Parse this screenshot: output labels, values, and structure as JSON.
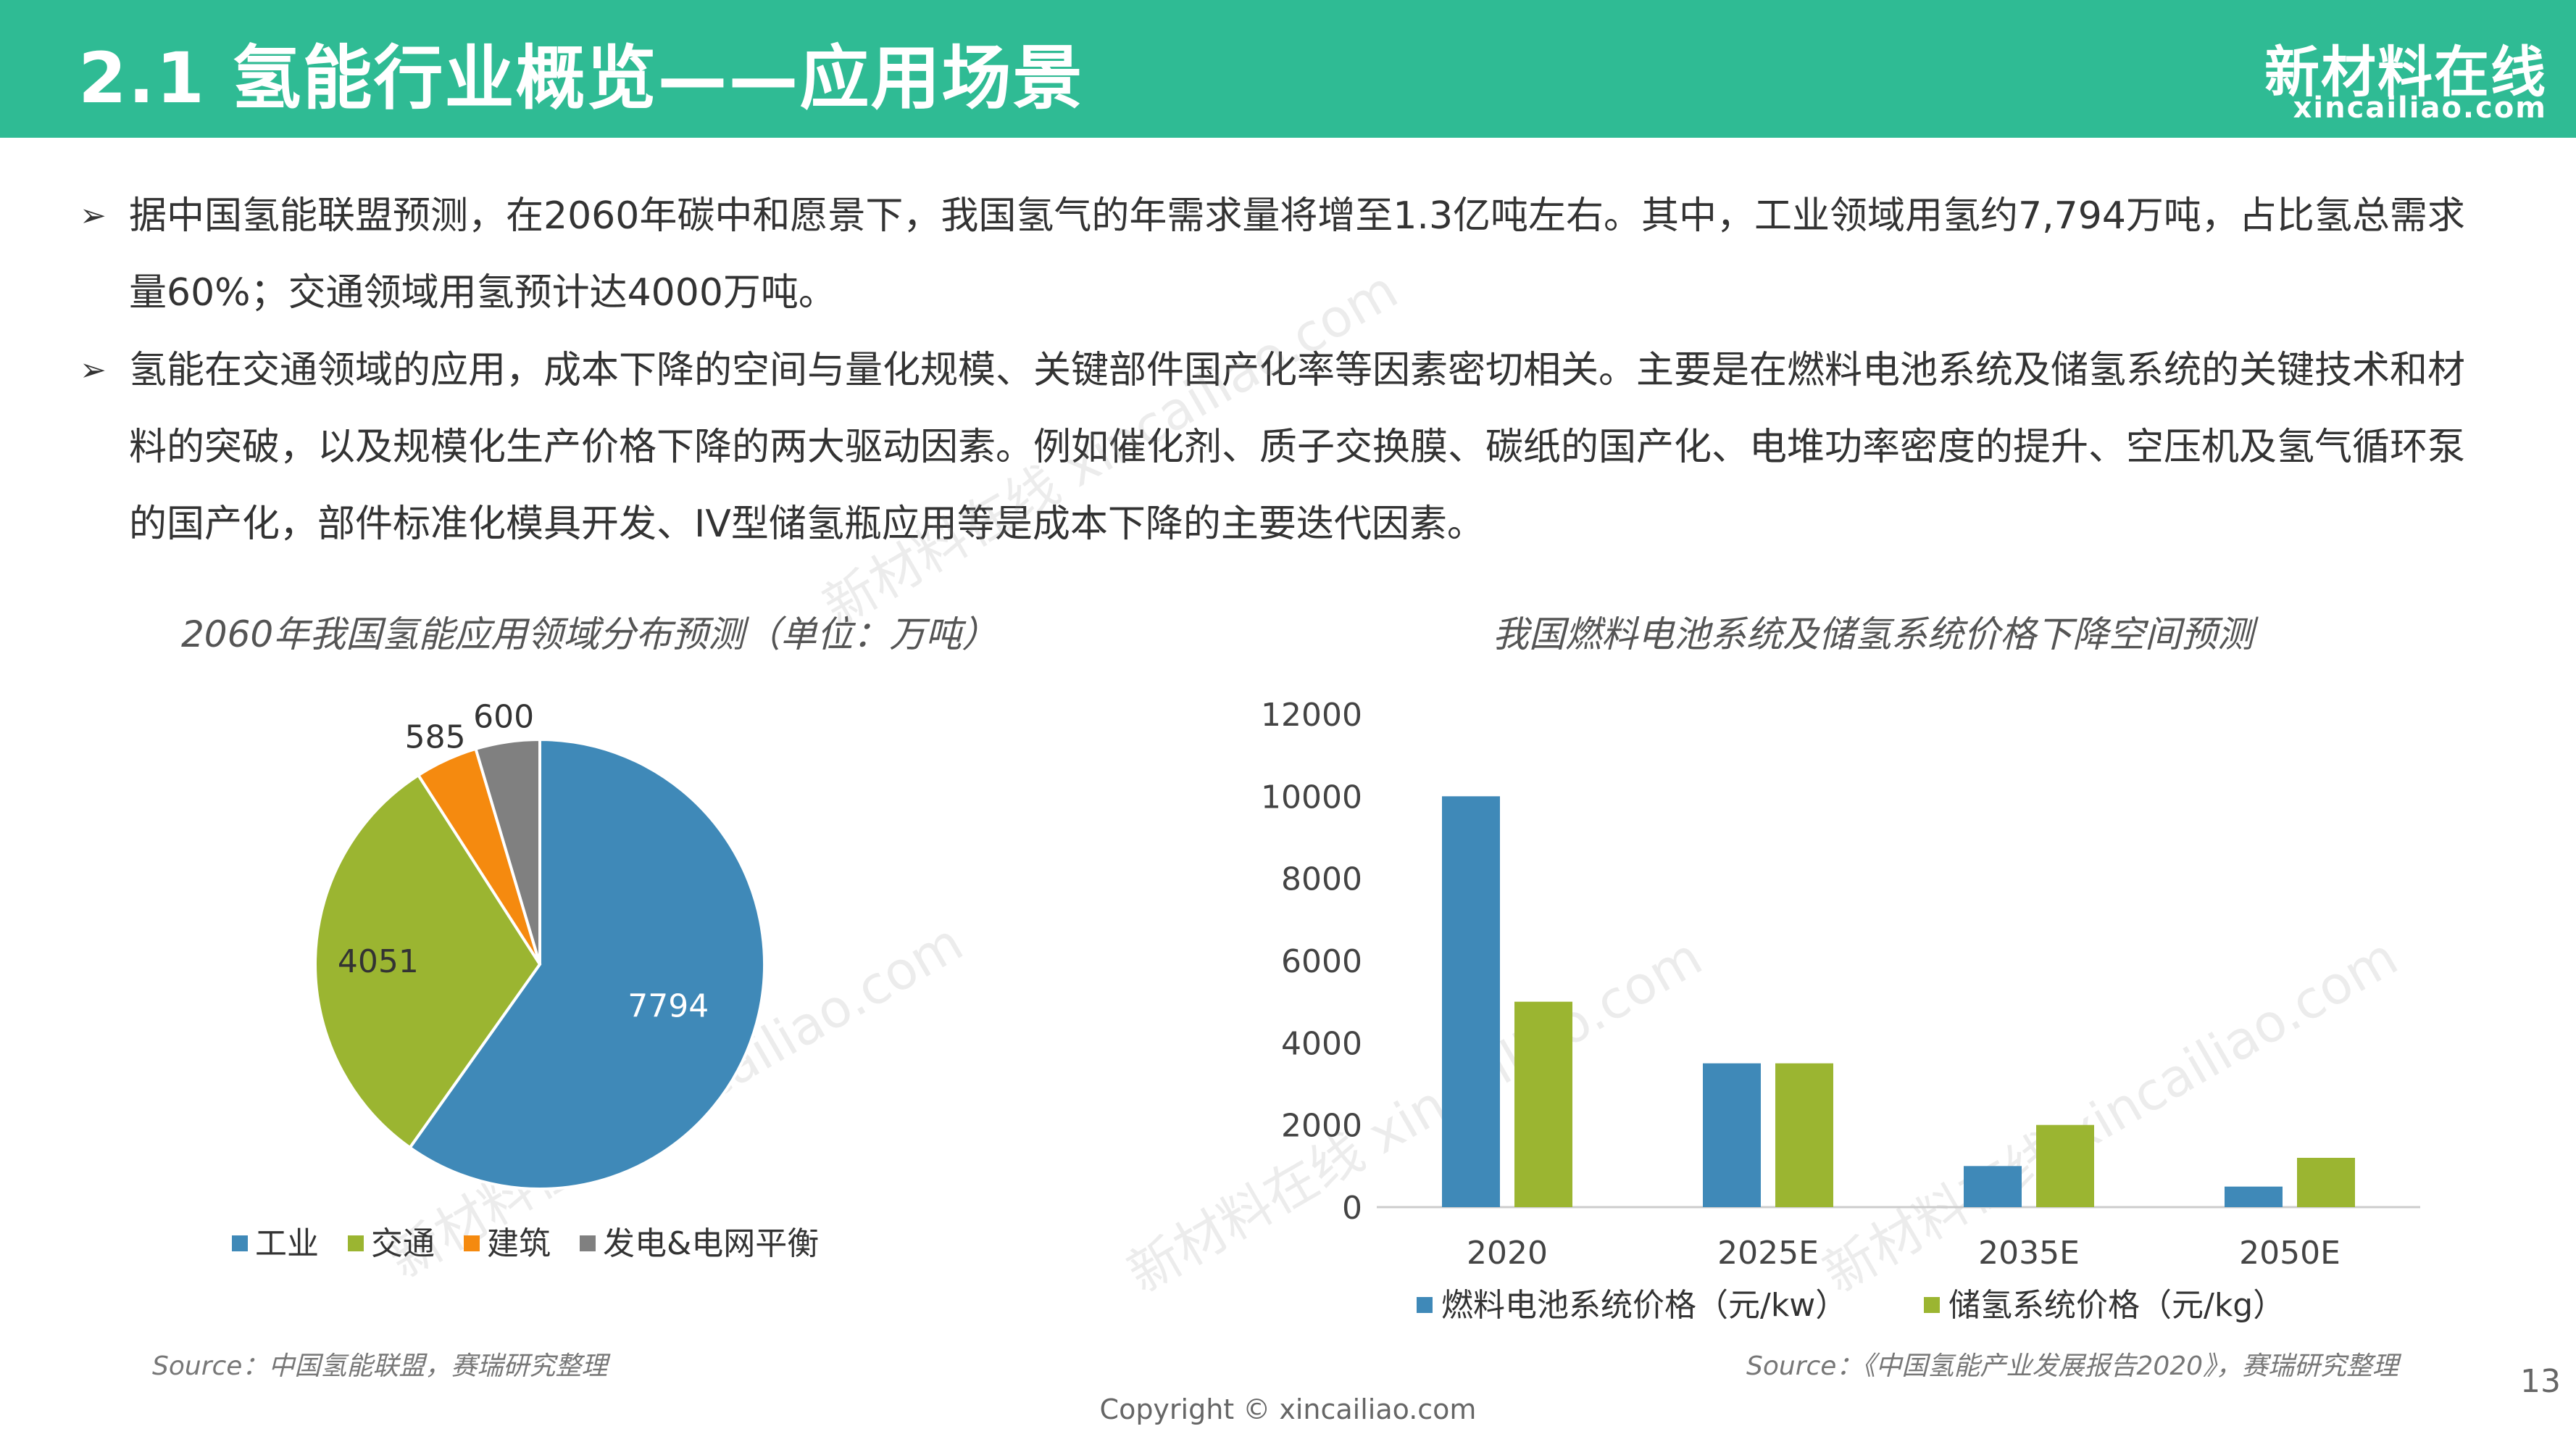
{
  "header": {
    "title": "2.1 氢能行业概览——应用场景",
    "logo_main": "新材料在线",
    "logo_sub": "xincailiao.com"
  },
  "bullets": [
    "据中国氢能联盟预测，在2060年碳中和愿景下，我国氢气的年需求量将增至1.3亿吨左右。其中，工业领域用氢约7,794万吨，占比氢总需求量60%；交通领域用氢预计达4000万吨。",
    "氢能在交通领域的应用，成本下降的空间与量化规模、关键部件国产化率等因素密切相关。主要是在燃料电池系统及储氢系统的关键技术和材料的突破，以及规模化生产价格下降的两大驱动因素。例如催化剂、质子交换膜、碳纸的国产化、电堆功率密度的提升、空压机及氢气循环泵的国产化，部件标准化模具开发、IV型储氢瓶应用等是成本下降的主要迭代因素。"
  ],
  "bullet_marker": "➢",
  "chart_data": [
    {
      "type": "pie",
      "title": "2060年我国氢能应用领域分布预测（单位：万吨）",
      "categories": [
        "工业",
        "交通",
        "建筑",
        "发电&电网平衡"
      ],
      "values": [
        7794,
        4051,
        585,
        600
      ],
      "colors": [
        "#3f89b8",
        "#9bb531",
        "#f58a0f",
        "#808080"
      ],
      "data_labels": [
        "7794",
        "4051",
        "585",
        "600"
      ]
    },
    {
      "type": "bar",
      "title": "我国燃料电池系统及储氢系统价格下降空间预测",
      "categories": [
        "2020",
        "2025E",
        "2035E",
        "2050E"
      ],
      "series": [
        {
          "name": "燃料电池系统价格（元/kw）",
          "values": [
            10000,
            3500,
            1000,
            500
          ],
          "color": "#3f89b8"
        },
        {
          "name": "储氢系统价格（元/kg）",
          "values": [
            5000,
            3500,
            2000,
            1200
          ],
          "color": "#9bb531"
        }
      ],
      "ylim": [
        0,
        12000
      ],
      "yticks": [
        "0",
        "2000",
        "4000",
        "6000",
        "8000",
        "10000",
        "12000"
      ]
    }
  ],
  "sources": {
    "left": "Source：中国氢能联盟，赛瑞研究整理",
    "right": "Source：《中国氢能产业发展报告2020》，赛瑞研究整理"
  },
  "copyright": "Copyright © xincailiao.com",
  "page_number": "13",
  "watermark_text": "新材料在线 xincailiao.com"
}
